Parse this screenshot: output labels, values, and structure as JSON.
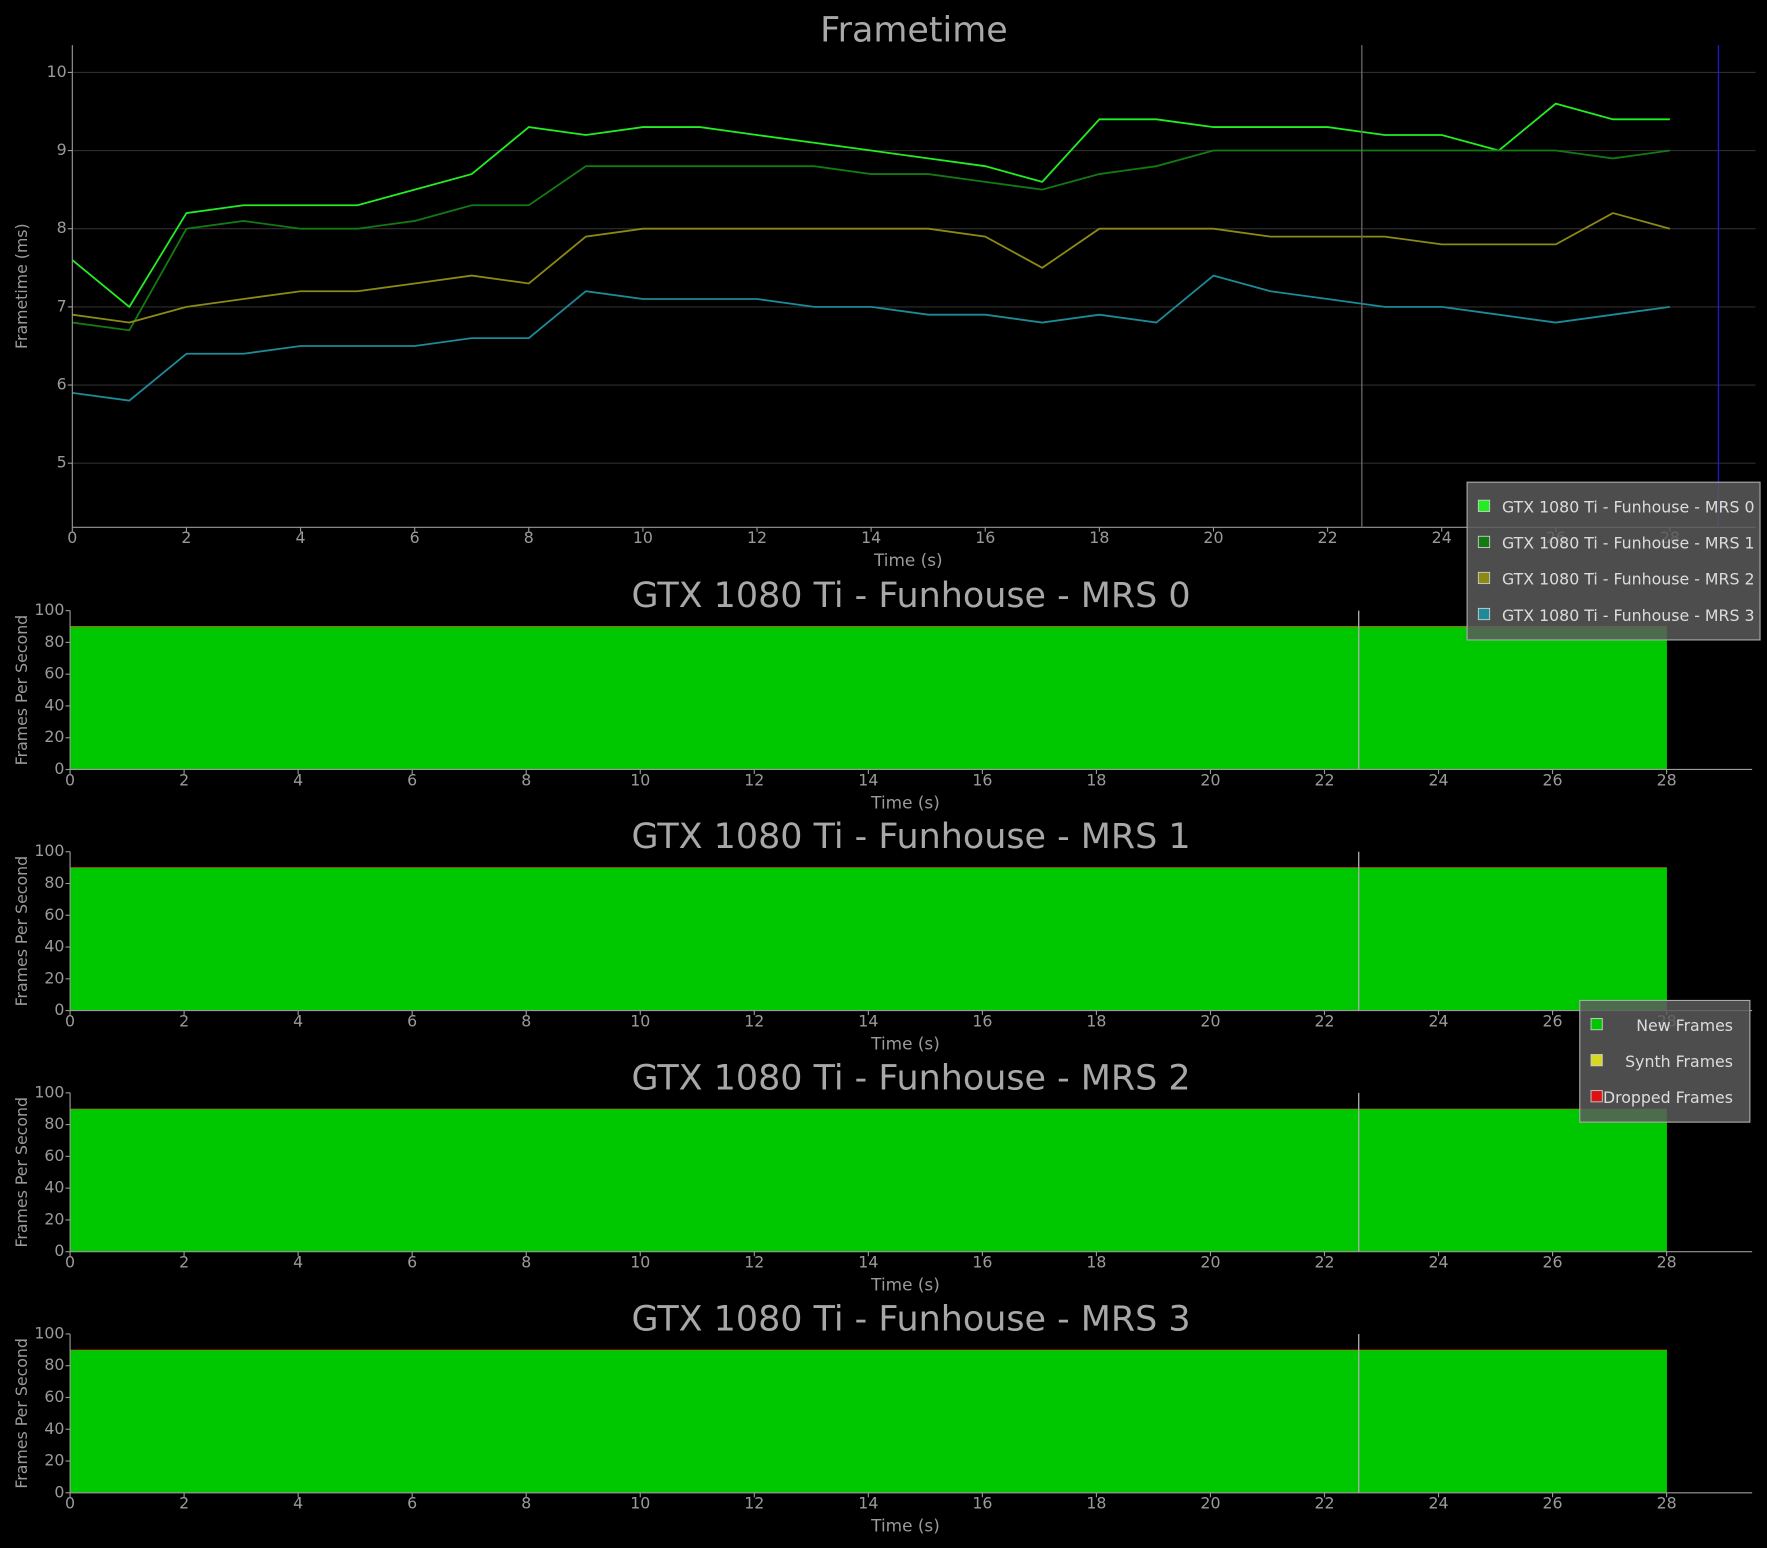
{
  "chart_data": [
    {
      "type": "line",
      "title": "Frametime",
      "x_label": "Time (s)",
      "y_label": "Frametime (ms)",
      "x": [
        0,
        1,
        2,
        3,
        4,
        5,
        6,
        7,
        8,
        9,
        10,
        11,
        12,
        13,
        14,
        15,
        16,
        17,
        18,
        19,
        20,
        21,
        22,
        23,
        24,
        25,
        26,
        27,
        28
      ],
      "series": [
        {
          "name": "GTX 1080 Ti - Funhouse - MRS 0",
          "color": "#22ee22",
          "values": [
            7.6,
            7.0,
            8.2,
            8.3,
            8.3,
            8.3,
            8.5,
            8.7,
            9.3,
            9.2,
            9.3,
            9.3,
            9.2,
            9.1,
            9.0,
            8.9,
            8.8,
            8.6,
            9.4,
            9.4,
            9.3,
            9.3,
            9.3,
            9.2,
            9.2,
            9.0,
            9.6,
            9.4,
            9.4
          ]
        },
        {
          "name": "GTX 1080 Ti - Funhouse - MRS 1",
          "color": "#137a13",
          "values": [
            6.8,
            6.7,
            8.0,
            8.1,
            8.0,
            8.0,
            8.1,
            8.3,
            8.3,
            8.8,
            8.8,
            8.8,
            8.8,
            8.8,
            8.7,
            8.7,
            8.6,
            8.5,
            8.7,
            8.8,
            9.0,
            9.0,
            9.0,
            9.0,
            9.0,
            9.0,
            9.0,
            8.9,
            9.0
          ]
        },
        {
          "name": "GTX 1080 Ti - Funhouse - MRS 2",
          "color": "#8c8a14",
          "values": [
            6.9,
            6.8,
            7.0,
            7.1,
            7.2,
            7.2,
            7.3,
            7.4,
            7.3,
            7.9,
            8.0,
            8.0,
            8.0,
            8.0,
            8.0,
            8.0,
            7.9,
            7.5,
            8.0,
            8.0,
            8.0,
            7.9,
            7.9,
            7.9,
            7.8,
            7.8,
            7.8,
            8.2,
            8.0
          ]
        },
        {
          "name": "GTX 1080 Ti - Funhouse - MRS 3",
          "color": "#1c8a98",
          "values": [
            5.9,
            5.8,
            6.4,
            6.4,
            6.5,
            6.5,
            6.5,
            6.6,
            6.6,
            7.2,
            7.1,
            7.1,
            7.1,
            7.0,
            7.0,
            6.9,
            6.9,
            6.8,
            6.9,
            6.8,
            7.4,
            7.2,
            7.1,
            7.0,
            7.0,
            6.9,
            6.8,
            6.9,
            7.0
          ]
        }
      ],
      "xlim": [
        0,
        29.5
      ],
      "xticks": [
        0,
        2,
        4,
        6,
        8,
        10,
        12,
        14,
        16,
        18,
        20,
        22,
        24,
        26,
        28
      ],
      "ylim": [
        4.18,
        10.35
      ],
      "yticks": [
        5,
        6,
        7,
        8,
        9,
        10
      ],
      "grid": true,
      "legend": "lower right",
      "vlines": [
        {
          "x": 22.6,
          "color": "#666666"
        },
        {
          "x": 28.85,
          "color": "#1a1acc"
        }
      ]
    },
    {
      "type": "area",
      "stacked": true,
      "title": "GTX 1080 Ti - Funhouse - MRS 0",
      "x_label": "Time (s)",
      "y_label": "Frames Per Second",
      "x": [
        0,
        28
      ],
      "series": [
        {
          "color": "#00c800",
          "values": [
            90,
            90
          ]
        },
        {
          "color": "#d8d820",
          "values": [
            0,
            0
          ]
        },
        {
          "color": "#dd1111",
          "values": [
            0,
            0
          ]
        }
      ],
      "xlim": [
        0,
        29.5
      ],
      "xticks": [
        0,
        2,
        4,
        6,
        8,
        10,
        12,
        14,
        16,
        18,
        20,
        22,
        24,
        26,
        28
      ],
      "ylim": [
        0,
        100
      ],
      "yticks": [
        0,
        20,
        40,
        60,
        80,
        100
      ],
      "vlines": [
        {
          "x": 22.6,
          "color": "#aaaaaa"
        }
      ]
    },
    {
      "type": "area",
      "stacked": true,
      "title": "GTX 1080 Ti - Funhouse - MRS 1",
      "x_label": "Time (s)",
      "y_label": "Frames Per Second",
      "x": [
        0,
        28
      ],
      "series": [
        {
          "name": "New Frames",
          "color": "#00c800",
          "values": [
            90,
            90
          ]
        },
        {
          "name": "Synth Frames",
          "color": "#d8d820",
          "values": [
            0,
            0
          ]
        },
        {
          "name": "Dropped Frames",
          "color": "#dd1111",
          "values": [
            0,
            0
          ]
        }
      ],
      "xlim": [
        0,
        29.5
      ],
      "xticks": [
        0,
        2,
        4,
        6,
        8,
        10,
        12,
        14,
        16,
        18,
        20,
        22,
        24,
        26,
        28
      ],
      "ylim": [
        0,
        100
      ],
      "yticks": [
        0,
        20,
        40,
        60,
        80,
        100
      ],
      "legend": "lower right",
      "vlines": [
        {
          "x": 22.6,
          "color": "#aaaaaa"
        }
      ]
    },
    {
      "type": "area",
      "stacked": true,
      "title": "GTX 1080 Ti - Funhouse - MRS 2",
      "x_label": "Time (s)",
      "y_label": "Frames Per Second",
      "x": [
        0,
        28
      ],
      "series": [
        {
          "color": "#00c800",
          "values": [
            90,
            90
          ]
        },
        {
          "color": "#d8d820",
          "values": [
            0,
            0
          ]
        },
        {
          "color": "#dd1111",
          "values": [
            0,
            0
          ]
        }
      ],
      "xlim": [
        0,
        29.5
      ],
      "xticks": [
        0,
        2,
        4,
        6,
        8,
        10,
        12,
        14,
        16,
        18,
        20,
        22,
        24,
        26,
        28
      ],
      "ylim": [
        0,
        100
      ],
      "yticks": [
        0,
        20,
        40,
        60,
        80,
        100
      ],
      "vlines": [
        {
          "x": 22.6,
          "color": "#aaaaaa"
        }
      ]
    },
    {
      "type": "area",
      "stacked": true,
      "title": "GTX 1080 Ti - Funhouse - MRS 3",
      "x_label": "Time (s)",
      "y_label": "Frames Per Second",
      "x": [
        0,
        28
      ],
      "series": [
        {
          "color": "#00c800",
          "values": [
            90,
            90
          ]
        },
        {
          "color": "#d8d820",
          "values": [
            0,
            0
          ]
        },
        {
          "color": "#dd1111",
          "values": [
            0,
            0
          ]
        }
      ],
      "xlim": [
        0,
        29.5
      ],
      "xticks": [
        0,
        2,
        4,
        6,
        8,
        10,
        12,
        14,
        16,
        18,
        20,
        22,
        24,
        26,
        28
      ],
      "ylim": [
        0,
        100
      ],
      "yticks": [
        0,
        20,
        40,
        60,
        80,
        100
      ],
      "vlines": [
        {
          "x": 22.6,
          "color": "#aaaaaa"
        }
      ]
    }
  ]
}
